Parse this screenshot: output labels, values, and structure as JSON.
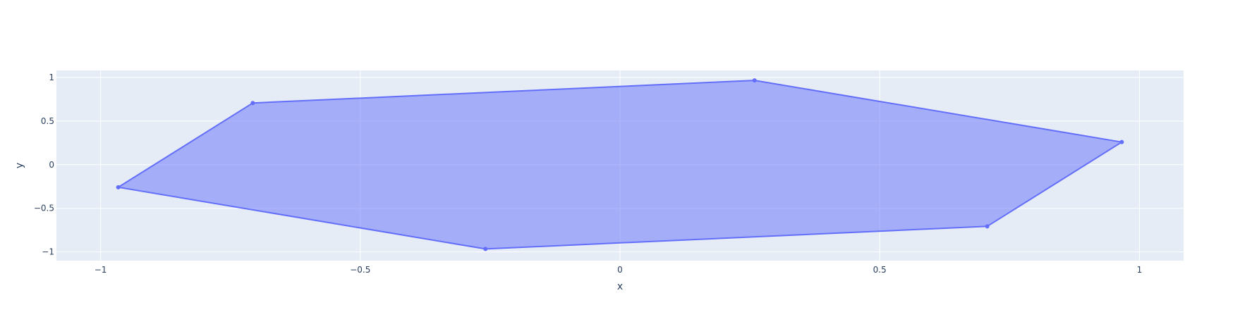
{
  "chart_data": {
    "type": "scatter",
    "mode": "lines+markers",
    "fill": "toself",
    "title": "",
    "xlabel": "x",
    "ylabel": "y",
    "xlim": [
      -1.085,
      1.085
    ],
    "ylim": [
      -1.1,
      1.08
    ],
    "grid": true,
    "legend": "none",
    "x_ticks": [
      {
        "value": -1,
        "label": "−1"
      },
      {
        "value": -0.5,
        "label": "−0.5"
      },
      {
        "value": 0,
        "label": "0"
      },
      {
        "value": 0.5,
        "label": "0.5"
      },
      {
        "value": 1,
        "label": "1"
      }
    ],
    "y_ticks": [
      {
        "value": -1,
        "label": "−1"
      },
      {
        "value": -0.5,
        "label": "−0.5"
      },
      {
        "value": 0,
        "label": "0"
      },
      {
        "value": 0.5,
        "label": "0.5"
      },
      {
        "value": 1,
        "label": "1"
      }
    ],
    "series": [
      {
        "points": [
          {
            "x": 0.966,
            "y": 0.259
          },
          {
            "x": 0.707,
            "y": -0.707
          },
          {
            "x": -0.259,
            "y": -0.966
          },
          {
            "x": -0.966,
            "y": -0.259
          },
          {
            "x": -0.707,
            "y": 0.707
          },
          {
            "x": 0.259,
            "y": 0.966
          }
        ],
        "line_color": "#636efa",
        "fill_color": "rgba(99,110,250,0.5)"
      }
    ],
    "colors": {
      "plot_background": "#e5ecf6",
      "grid": "#ffffff",
      "text": "#2a3f5f"
    }
  }
}
